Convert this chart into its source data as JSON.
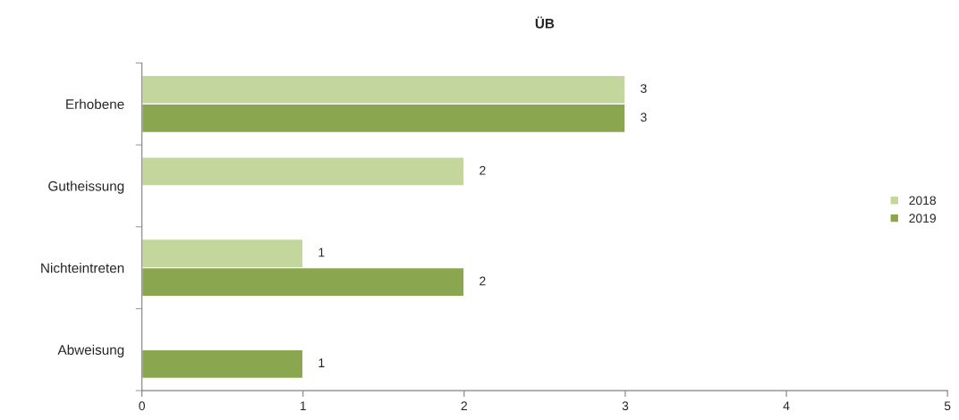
{
  "chart_data": {
    "type": "bar",
    "title": "ÜB",
    "orientation": "horizontal",
    "categories": [
      "Erhobene",
      "Gutheissung",
      "Nichteintreten",
      "Abweisung"
    ],
    "series": [
      {
        "name": "2018",
        "color": "#c3d69b",
        "values": [
          3,
          2,
          1,
          null
        ]
      },
      {
        "name": "2019",
        "color": "#8aa74f",
        "values": [
          3,
          null,
          2,
          1
        ]
      }
    ],
    "xlim": [
      0,
      5
    ],
    "xticks": [
      0,
      1,
      2,
      3,
      4,
      5
    ],
    "grid": false,
    "legend": "right",
    "data_labels": true
  }
}
